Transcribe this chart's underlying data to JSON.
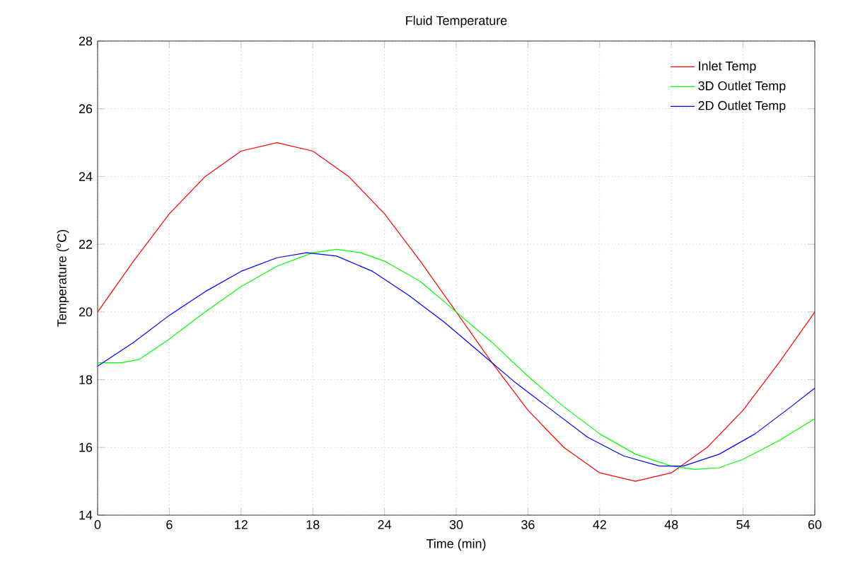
{
  "chart_data": {
    "type": "line",
    "title": "Fluid Temperature",
    "xlabel": "Time (min)",
    "ylabel": "Temperature ($^{o}$C)",
    "xlim": [
      0,
      60
    ],
    "ylim": [
      14,
      28
    ],
    "xticks": [
      0,
      6,
      12,
      18,
      24,
      30,
      36,
      42,
      48,
      54,
      60
    ],
    "yticks": [
      14,
      16,
      18,
      20,
      22,
      24,
      26,
      28
    ],
    "grid": true,
    "legend": "top right",
    "series": [
      {
        "name": "Inlet Temp",
        "color": "#ff0000",
        "x": [
          0,
          3,
          6,
          9,
          12,
          15,
          18,
          21,
          24,
          27,
          30,
          33,
          36,
          39,
          42,
          45,
          48,
          51,
          54,
          57,
          60
        ],
        "values": [
          20,
          21.5,
          22.9,
          24.0,
          24.75,
          25,
          24.75,
          24.0,
          22.9,
          21.5,
          20,
          18.5,
          17.1,
          16.0,
          15.25,
          15,
          15.25,
          16.0,
          17.1,
          18.5,
          20
        ]
      },
      {
        "name": "3D Outlet Temp",
        "color": "#00ff00",
        "x": [
          0,
          2,
          3.5,
          6,
          9,
          12,
          15,
          18,
          20,
          22,
          24,
          27,
          30,
          33,
          36,
          39,
          42,
          45,
          48,
          50,
          52,
          54,
          57,
          60
        ],
        "values": [
          18.5,
          18.5,
          18.6,
          19.2,
          20.0,
          20.75,
          21.35,
          21.75,
          21.85,
          21.75,
          21.5,
          20.9,
          20.0,
          19.1,
          18.1,
          17.2,
          16.4,
          15.8,
          15.45,
          15.35,
          15.4,
          15.65,
          16.2,
          16.85
        ]
      },
      {
        "name": "2D Outlet Temp",
        "color": "#0000ff",
        "x": [
          0,
          3,
          6,
          9,
          12,
          15,
          17.5,
          20,
          23,
          26,
          29,
          32,
          35,
          38,
          41,
          44,
          47,
          49,
          52,
          55,
          58,
          60
        ],
        "values": [
          18.4,
          19.1,
          19.9,
          20.6,
          21.2,
          21.6,
          21.75,
          21.65,
          21.2,
          20.5,
          19.7,
          18.8,
          17.9,
          17.1,
          16.3,
          15.75,
          15.45,
          15.45,
          15.8,
          16.4,
          17.2,
          17.75
        ]
      }
    ]
  }
}
